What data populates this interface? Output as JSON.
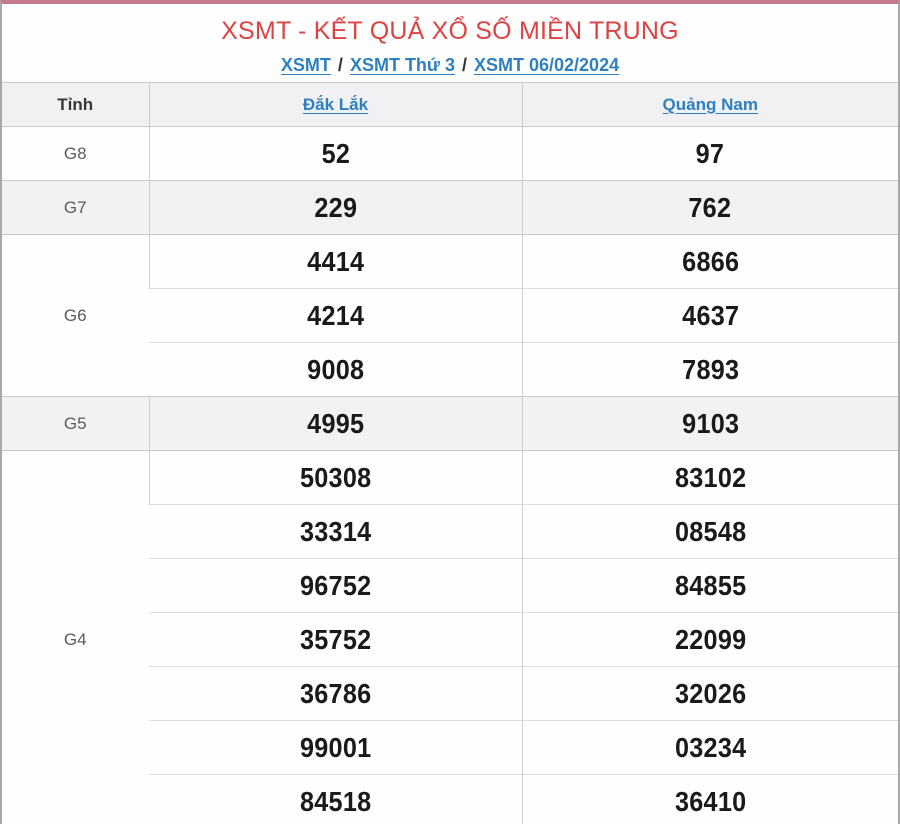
{
  "page": {
    "title": "XSMT - KẾT QUẢ XỔ SỐ MIỀN TRUNG",
    "separator": "/",
    "breadcrumb": [
      {
        "label": "XSMT"
      },
      {
        "label": "XSMT Thứ 3"
      },
      {
        "label": "XSMT 06/02/2024"
      }
    ]
  },
  "table": {
    "columns": [
      "Tỉnh",
      "Đắk Lắk",
      "Quảng Nam"
    ],
    "groups": [
      {
        "prize": "G8",
        "rows": [
          [
            "52",
            "97"
          ]
        ]
      },
      {
        "prize": "G7",
        "rows": [
          [
            "229",
            "762"
          ]
        ]
      },
      {
        "prize": "G6",
        "rows": [
          [
            "4414",
            "6866"
          ],
          [
            "4214",
            "4637"
          ],
          [
            "9008",
            "7893"
          ]
        ]
      },
      {
        "prize": "G5",
        "rows": [
          [
            "4995",
            "9103"
          ]
        ]
      },
      {
        "prize": "G4",
        "rows": [
          [
            "50308",
            "83102"
          ],
          [
            "33314",
            "08548"
          ],
          [
            "96752",
            "84855"
          ],
          [
            "35752",
            "22099"
          ],
          [
            "36786",
            "32026"
          ],
          [
            "99001",
            "03234"
          ],
          [
            "84518",
            "36410"
          ]
        ]
      }
    ]
  },
  "colors": {
    "title_red": "#dc4343",
    "link_blue": "#2e80c2",
    "header_bg": "#f1f0f2",
    "stripe_bg": "#f2f1f3",
    "top_border": "#c5798e",
    "side_border": "#a8a8a8"
  }
}
